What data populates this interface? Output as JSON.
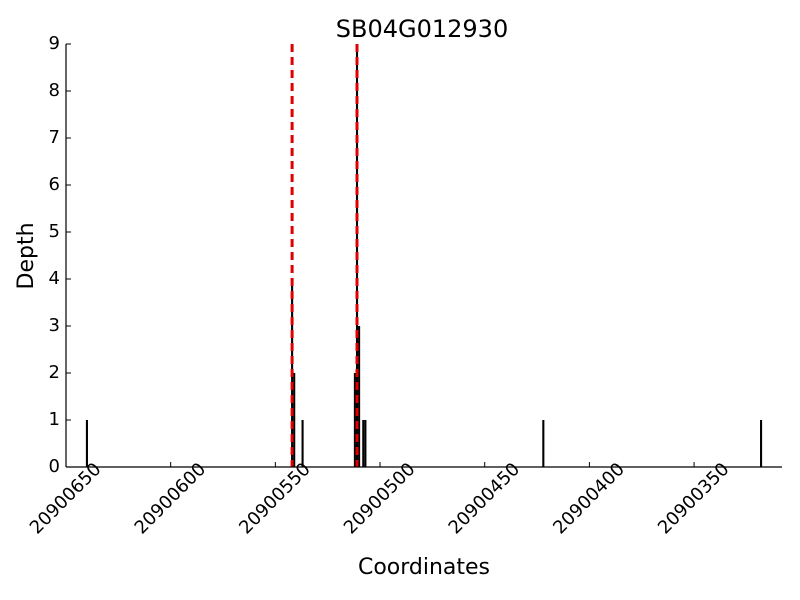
{
  "chart_data": {
    "type": "bar",
    "title": "SB04G012930",
    "xlabel": "Coordinates",
    "ylabel": "Depth",
    "x": [
      20900640,
      20900542,
      20900541,
      20900537,
      20900512,
      20900511,
      20900510,
      20900508,
      20900507,
      20900422,
      20900318
    ],
    "values": [
      1,
      4,
      2,
      1,
      2,
      9,
      3,
      1,
      1,
      1,
      1
    ],
    "color": "#000000",
    "xlim": [
      20900650,
      20900308
    ],
    "xticks": [
      20900650,
      20900600,
      20900550,
      20900500,
      20900450,
      20900400,
      20900350
    ],
    "ylim": [
      0,
      9
    ],
    "yticks": [
      0,
      1,
      2,
      3,
      4,
      5,
      6,
      7,
      8,
      9
    ],
    "vlines": [
      20900542,
      20900511
    ],
    "vline_color": "#e00000"
  }
}
